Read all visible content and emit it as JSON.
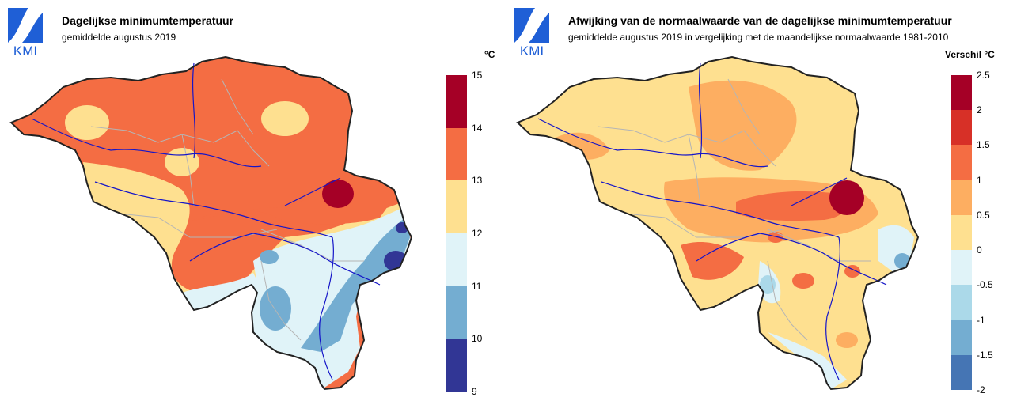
{
  "panels": [
    {
      "logo_text": "KMI",
      "title": "Dagelijkse minimumtemperatuur",
      "subtitle": "gemiddelde augustus 2019",
      "unit_label": "°C",
      "legend": {
        "ticks": [
          "15",
          "14",
          "13",
          "12",
          "11",
          "10",
          "9"
        ],
        "colors": [
          "#a50026",
          "#f46d43",
          "#fee090",
          "#e0f3f8",
          "#74add1",
          "#313695"
        ]
      },
      "map_colors": {
        "base": "#f46d43",
        "warm_light": "#fee090",
        "cool_light": "#e0f3f8",
        "cool": "#74add1",
        "cold": "#313695",
        "hot": "#a50026"
      }
    },
    {
      "logo_text": "KMI",
      "title": "Afwijking van de normaalwaarde van de dagelijkse minimumtemperatuur",
      "subtitle": "gemiddelde augustus 2019 in vergelijking met de maandelijkse normaalwaarde 1981-2010",
      "unit_label": "Verschil °C",
      "legend": {
        "ticks": [
          "2.5",
          "2",
          "1.5",
          "1",
          "0.5",
          "0",
          "-0.5",
          "-1",
          "-1.5",
          "-2"
        ],
        "colors": [
          "#a50026",
          "#d73027",
          "#f46d43",
          "#fdae61",
          "#fee090",
          "#e0f3f8",
          "#abd9e9",
          "#74add1",
          "#4575b4"
        ]
      },
      "map_colors": {
        "base": "#fee090",
        "warm": "#fdae61",
        "warmer": "#f46d43",
        "hot": "#a50026",
        "neutral": "#e0f3f8",
        "cool": "#abd9e9",
        "cold": "#74add1"
      }
    }
  ]
}
